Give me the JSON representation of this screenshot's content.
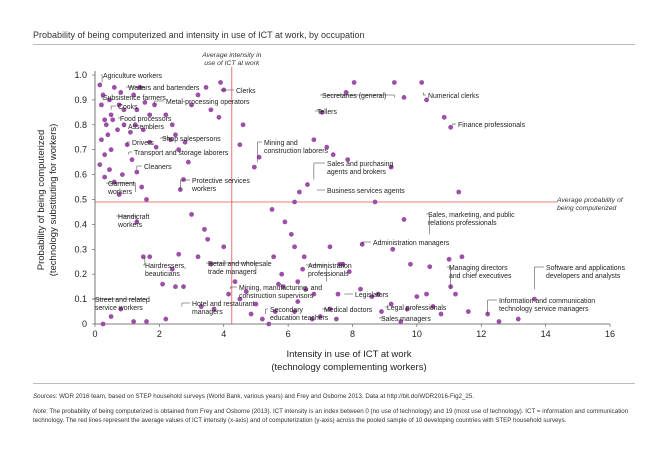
{
  "title": "Probability of being computerized and intensity in use of ICT at work, by occupation",
  "sources_label": "Sources",
  "sources_text": ": WDR 2016 team, based on STEP household surveys (World Bank, various years) and Frey and Osborne 2013. Data at http://bit.do/WDR2016-Fig2_25.",
  "note_label": "Note",
  "note_text": ": The probability of being computerized is obtained from Frey and Osborne (2013). ICT intensity is an index between 0 (no use of technology) and 19 (most use of technology). ICT = information and communication technology. The red lines represent the average values of ICT intensity (x-axis) and of computerization (y-axis) across the pooled sample of 10 developing countries with STEP household surveys.",
  "chart_data": {
    "type": "scatter",
    "title": "Probability of being computerized and intensity in use of ICT at work, by occupation",
    "xlabel": "Intensity in use of ICT at work",
    "xlabel2": "(technology complementing workers)",
    "ylabel": "Probability of being computerized",
    "ylabel2": "(technology substituting for workers)",
    "xlim": [
      0,
      16
    ],
    "ylim": [
      0,
      1.0
    ],
    "xticks": [
      "0",
      "2",
      "4",
      "6",
      "8",
      "10",
      "12",
      "14",
      "16"
    ],
    "xtick_values": [
      0,
      2,
      4,
      6,
      8,
      10,
      12,
      14,
      16
    ],
    "yticks": [
      "0",
      "0.1",
      "0.2",
      "0.3",
      "0.4",
      "0.5",
      "0.6",
      "0.7",
      "0.8",
      "0.9",
      "1.0"
    ],
    "ytick_values": [
      0,
      0.1,
      0.2,
      0.3,
      0.4,
      0.5,
      0.6,
      0.7,
      0.8,
      0.9,
      1.0
    ],
    "grid": false,
    "point_color": "#9c4fa6",
    "ref_line_color": "#e0504a",
    "avg_x": 4.25,
    "avg_y": 0.49,
    "avg_x_label": "Average intensity in use of ICT at work",
    "avg_y_label": "Average probability of being computerized",
    "points": [
      [
        0.15,
        0.96
      ],
      [
        0.25,
        0.92
      ],
      [
        0.2,
        0.88
      ],
      [
        0.45,
        0.9
      ],
      [
        0.6,
        0.95
      ],
      [
        0.8,
        0.93
      ],
      [
        0.75,
        0.88
      ],
      [
        0.9,
        0.86
      ],
      [
        0.5,
        0.84
      ],
      [
        0.3,
        0.82
      ],
      [
        0.35,
        0.8
      ],
      [
        0.55,
        0.82
      ],
      [
        0.4,
        0.76
      ],
      [
        0.2,
        0.74
      ],
      [
        0.7,
        0.78
      ],
      [
        0.9,
        0.8
      ],
      [
        0.5,
        0.7
      ],
      [
        0.3,
        0.68
      ],
      [
        0.15,
        0.64
      ],
      [
        0.45,
        0.62
      ],
      [
        0.3,
        0.59
      ],
      [
        0.6,
        0.57
      ],
      [
        0.75,
        0.52
      ],
      [
        0.85,
        0.6
      ],
      [
        1.0,
        0.72
      ],
      [
        1.1,
        0.77
      ],
      [
        1.25,
        0.8
      ],
      [
        1.3,
        0.86
      ],
      [
        1.2,
        0.92
      ],
      [
        1.4,
        0.95
      ],
      [
        1.55,
        0.89
      ],
      [
        1.7,
        0.84
      ],
      [
        1.85,
        0.88
      ],
      [
        1.5,
        0.78
      ],
      [
        1.7,
        0.73
      ],
      [
        1.9,
        0.71
      ],
      [
        1.15,
        0.66
      ],
      [
        1.3,
        0.61
      ],
      [
        1.45,
        0.55
      ],
      [
        1.6,
        0.5
      ],
      [
        1.3,
        0.41
      ],
      [
        2.2,
        0.84
      ],
      [
        2.4,
        0.8
      ],
      [
        2.5,
        0.76
      ],
      [
        2.35,
        0.74
      ],
      [
        2.6,
        0.7
      ],
      [
        2.8,
        0.73
      ],
      [
        2.9,
        0.65
      ],
      [
        2.75,
        0.58
      ],
      [
        2.65,
        0.54
      ],
      [
        3.0,
        0.88
      ],
      [
        3.2,
        0.92
      ],
      [
        3.45,
        0.95
      ],
      [
        3.9,
        0.97
      ],
      [
        4.0,
        0.94
      ],
      [
        3.6,
        0.86
      ],
      [
        3.85,
        0.83
      ],
      [
        4.6,
        0.8
      ],
      [
        4.5,
        0.72
      ],
      [
        5.1,
        0.67
      ],
      [
        4.95,
        0.63
      ],
      [
        3.0,
        0.44
      ],
      [
        3.4,
        0.38
      ],
      [
        3.5,
        0.34
      ],
      [
        3.2,
        0.27
      ],
      [
        2.6,
        0.28
      ],
      [
        2.4,
        0.22
      ],
      [
        1.5,
        0.27
      ],
      [
        1.7,
        0.27
      ],
      [
        2.1,
        0.16
      ],
      [
        2.5,
        0.15
      ],
      [
        2.75,
        0.15
      ],
      [
        3.3,
        0.07
      ],
      [
        3.7,
        0.06
      ],
      [
        2.2,
        0.02
      ],
      [
        1.6,
        0.01
      ],
      [
        1.2,
        0.01
      ],
      [
        0.5,
        0.03
      ],
      [
        0.8,
        0.06
      ],
      [
        0.25,
        0.0
      ],
      [
        4.15,
        0.12
      ],
      [
        4.35,
        0.17
      ],
      [
        4.7,
        0.13
      ],
      [
        4.5,
        0.1
      ],
      [
        4.85,
        0.04
      ],
      [
        5.0,
        0.08
      ],
      [
        5.2,
        0.02
      ],
      [
        5.4,
        0.0
      ],
      [
        5.6,
        0.05
      ],
      [
        5.8,
        0.2
      ],
      [
        5.7,
        0.16
      ],
      [
        5.55,
        0.27
      ],
      [
        5.5,
        0.46
      ],
      [
        5.9,
        0.41
      ],
      [
        6.1,
        0.36
      ],
      [
        6.2,
        0.31
      ],
      [
        6.5,
        0.27
      ],
      [
        6.45,
        0.22
      ],
      [
        6.3,
        0.17
      ],
      [
        6.55,
        0.14
      ],
      [
        6.8,
        0.12
      ],
      [
        6.3,
        0.09
      ],
      [
        6.2,
        0.05
      ],
      [
        6.75,
        0.02
      ],
      [
        7.0,
        0.03
      ],
      [
        7.3,
        0.06
      ],
      [
        7.5,
        0.02
      ],
      [
        7.55,
        0.12
      ],
      [
        7.7,
        0.24
      ],
      [
        7.3,
        0.31
      ],
      [
        6.2,
        0.49
      ],
      [
        6.35,
        0.53
      ],
      [
        6.6,
        0.56
      ],
      [
        6.8,
        0.74
      ],
      [
        7.2,
        0.71
      ],
      [
        7.4,
        0.68
      ],
      [
        7.05,
        0.85
      ],
      [
        7.8,
        0.93
      ],
      [
        8.05,
        0.97
      ],
      [
        7.85,
        0.66
      ],
      [
        7.6,
        0.24
      ],
      [
        7.9,
        0.21
      ],
      [
        8.25,
        0.14
      ],
      [
        8.6,
        0.11
      ],
      [
        8.8,
        0.12
      ],
      [
        8.9,
        0.05
      ],
      [
        9.2,
        0.08
      ],
      [
        9.5,
        0.01
      ],
      [
        9.7,
        0.06
      ],
      [
        9.8,
        0.24
      ],
      [
        10.0,
        0.11
      ],
      [
        10.3,
        0.12
      ],
      [
        10.5,
        0.07
      ],
      [
        10.4,
        0.23
      ],
      [
        10.75,
        0.04
      ],
      [
        11.05,
        0.15
      ],
      [
        11.2,
        0.12
      ],
      [
        11.0,
        0.26
      ],
      [
        11.4,
        0.27
      ],
      [
        11.3,
        0.53
      ],
      [
        11.6,
        0.05
      ],
      [
        12.2,
        0.04
      ],
      [
        12.55,
        0.01
      ],
      [
        13.15,
        0.02
      ],
      [
        13.65,
        0.1
      ],
      [
        9.2,
        0.63
      ],
      [
        9.3,
        0.97
      ],
      [
        9.6,
        0.91
      ],
      [
        10.15,
        0.97
      ],
      [
        10.3,
        0.9
      ],
      [
        10.85,
        0.83
      ],
      [
        11.05,
        0.79
      ],
      [
        8.7,
        0.49
      ],
      [
        9.6,
        0.42
      ],
      [
        9.25,
        0.3
      ],
      [
        8.3,
        0.32
      ],
      [
        5.85,
        0.15
      ],
      [
        4.0,
        0.31
      ],
      [
        3.6,
        0.24
      ]
    ],
    "annotations": [
      {
        "text": "Agriculture workers",
        "x": 0.22,
        "y": 0.97
      },
      {
        "text": "Subsistence farmers",
        "x": 0.25,
        "y": 0.9
      },
      {
        "text": "Cooks",
        "x": 0.5,
        "y": 0.86
      },
      {
        "text": "Food processors",
        "x": 0.8,
        "y": 0.82
      },
      {
        "text": "Assemblers",
        "x": 0.9,
        "y": 0.79
      },
      {
        "text": "Drivers",
        "x": 1.0,
        "y": 0.72
      },
      {
        "text": "Transport and storage laborers",
        "x": 1.05,
        "y": 0.68
      },
      {
        "text": "Cleaners",
        "x": 1.3,
        "y": 0.62
      },
      {
        "text": "Garment workers",
        "x": 1.25,
        "y": 0.53
      },
      {
        "text": "Waiters and bartenders",
        "x": 1.55,
        "y": 0.94
      },
      {
        "text": "Metal-processing operators",
        "x": 1.85,
        "y": 0.88
      },
      {
        "text": "Shop salespersons",
        "x": 2.35,
        "y": 0.74
      },
      {
        "text": "Clerks",
        "x": 3.9,
        "y": 0.94
      },
      {
        "text": "Protective services workers",
        "x": 2.65,
        "y": 0.54
      },
      {
        "text": "Handicraft workers",
        "x": 1.3,
        "y": 0.41
      },
      {
        "text": "Hairdressers, beauticians",
        "x": 1.55,
        "y": 0.27
      },
      {
        "text": "Street and related service workers",
        "x": 1.6,
        "y": 0.08
      },
      {
        "text": "Hotel and restaurant managers",
        "x": 2.7,
        "y": 0.07
      },
      {
        "text": "Retail and wholesale trade managers",
        "x": 5.0,
        "y": 0.2
      },
      {
        "text": "Mining, manufacturing, and construction supervisors",
        "x": 4.2,
        "y": 0.14
      },
      {
        "text": "Secondary education teachers",
        "x": 5.3,
        "y": 0.04
      },
      {
        "text": "Mining and construction laborers",
        "x": 5.05,
        "y": 0.65
      },
      {
        "text": "Tellers",
        "x": 7.05,
        "y": 0.85
      },
      {
        "text": "Secretaries (general)",
        "x": 9.3,
        "y": 0.91
      },
      {
        "text": "Numerical clerks",
        "x": 10.2,
        "y": 0.93
      },
      {
        "text": "Finance professionals",
        "x": 11.1,
        "y": 0.8
      },
      {
        "text": "Sales and purchasing agents and brokers",
        "x": 6.8,
        "y": 0.58
      },
      {
        "text": "Business services agents",
        "x": 6.9,
        "y": 0.54
      },
      {
        "text": "Sales, marketing, and public relations professionals",
        "x": 10.4,
        "y": 0.36
      },
      {
        "text": "Administration managers",
        "x": 8.3,
        "y": 0.32
      },
      {
        "text": "Administration professionals",
        "x": 7.2,
        "y": 0.17
      },
      {
        "text": "Legislators",
        "x": 7.75,
        "y": 0.12
      },
      {
        "text": "Medical doctors",
        "x": 7.2,
        "y": 0.05
      },
      {
        "text": "Legal professionals",
        "x": 9.1,
        "y": 0.07
      },
      {
        "text": "Sales managers",
        "x": 9.0,
        "y": 0.02
      },
      {
        "text": "Managing directors and chief executives",
        "x": 11.05,
        "y": 0.14
      },
      {
        "text": "Software and applications developers and analysts",
        "x": 13.65,
        "y": 0.14
      },
      {
        "text": "Information and communication technology service managers",
        "x": 12.2,
        "y": 0.04
      }
    ]
  }
}
